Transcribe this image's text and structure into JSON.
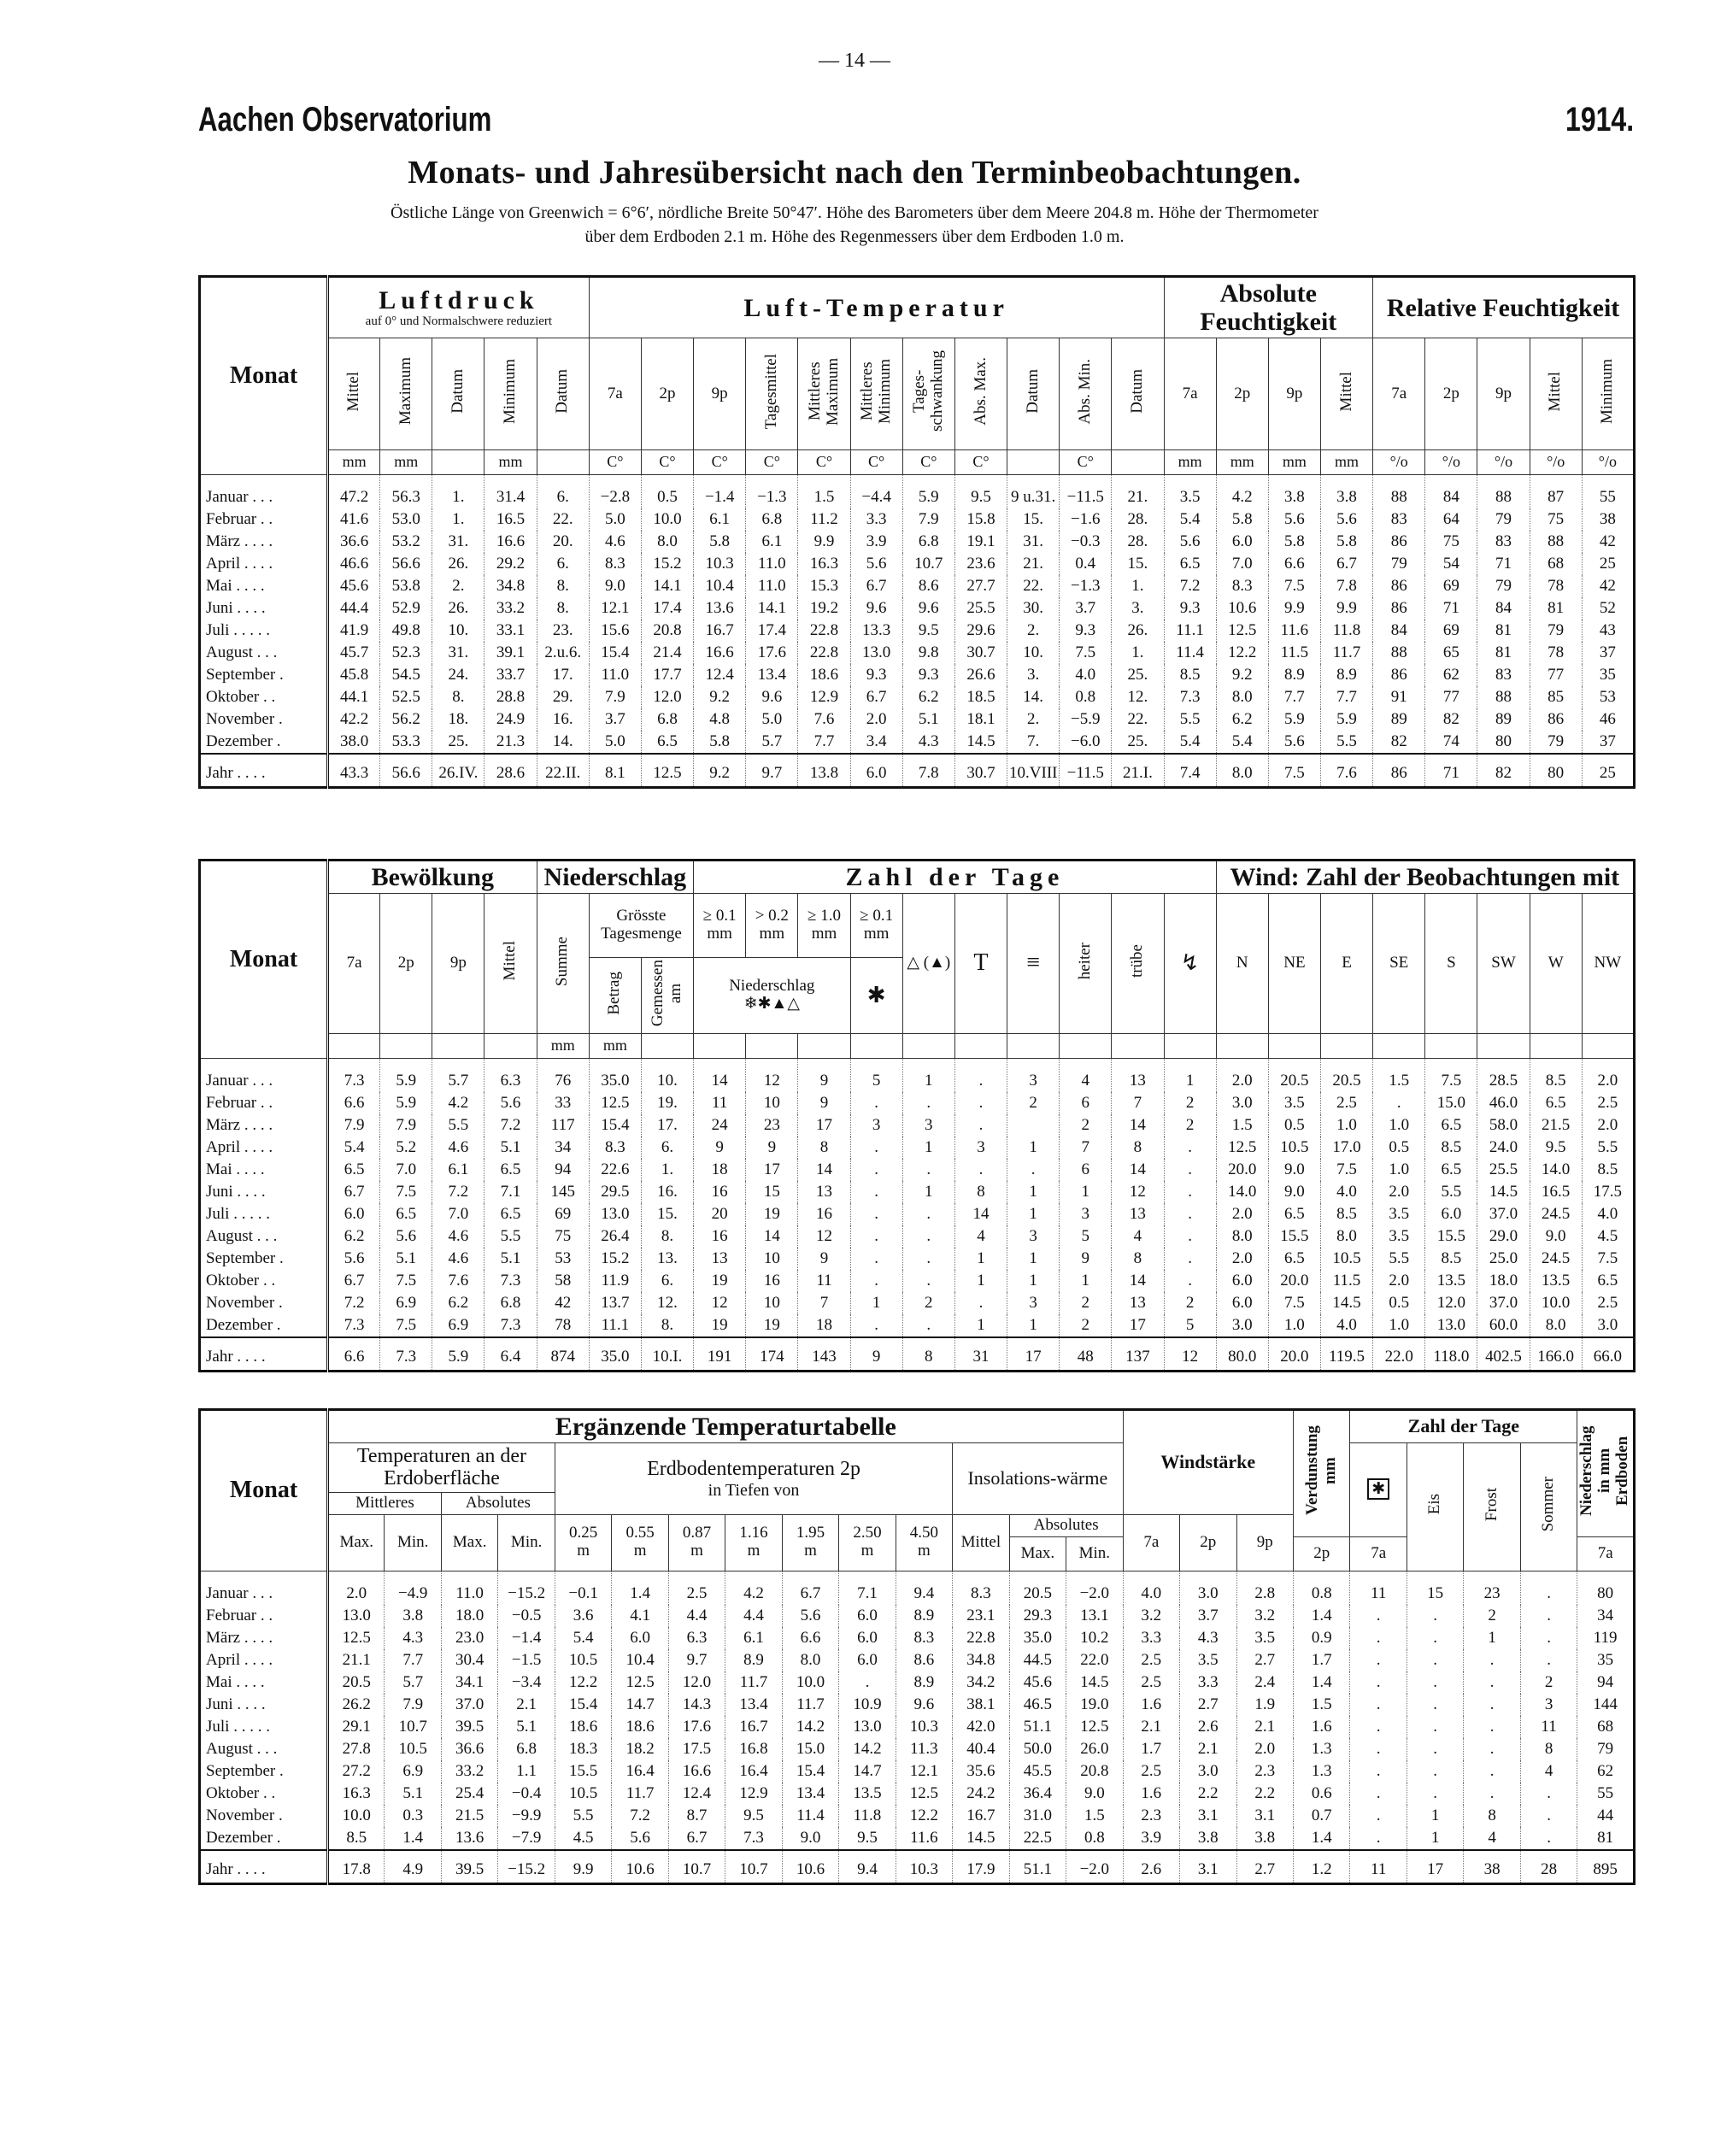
{
  "page_number": "— 14 —",
  "header": {
    "left": "Aachen Observatorium",
    "right": "1914.",
    "title": "Monats- und Jahresübersicht nach den Terminbeobachtungen.",
    "note1": "Östliche Länge von Greenwich = 6°6′, nördliche Breite 50°47′. Höhe des Barometers über dem Meere 204.8 m. Höhe der Thermometer",
    "note2": "über dem Erdboden 2.1 m. Höhe des Regenmessers über dem Erdboden 1.0 m."
  },
  "months": [
    "Januar . . .",
    "Februar . .",
    "März . . . .",
    "April . . . .",
    "Mai . . . .",
    "Juni . . . .",
    "Juli . . . . .",
    "August . . .",
    "September .",
    "Oktober . .",
    "November .",
    "Dezember .",
    "Jahr . . . ."
  ],
  "table1": {
    "monat": "Monat",
    "luftdruck": "Luftdruck",
    "luftdruck_note": "auf 0° und Normalschwere reduziert",
    "temperatur": "Luft-Temperatur",
    "abs_feucht": "Absolute Feuchtigkeit",
    "rel_feucht": "Relative Feuchtigkeit",
    "columns": [
      "Mittel",
      "Maximum",
      "Datum",
      "Minimum",
      "Datum",
      "7a",
      "2p",
      "9p",
      "Tagesmittel",
      "Mittleres Maximum",
      "Mittleres Minimum",
      "Tages-schwankung",
      "Abs. Max.",
      "Datum",
      "Abs. Min.",
      "Datum",
      "7a",
      "2p",
      "9p",
      "Mittel",
      "7a",
      "2p",
      "9p",
      "Mittel",
      "Minimum"
    ],
    "units": [
      "mm",
      "mm",
      null,
      "mm",
      null,
      "C°",
      "C°",
      "C°",
      "C°",
      "C°",
      "C°",
      "C°",
      "C°",
      null,
      "C°",
      null,
      "mm",
      "mm",
      "mm",
      "mm",
      "°/o",
      "°/o",
      "°/o",
      "°/o",
      "°/o"
    ],
    "rows": [
      [
        "47.2",
        "56.3",
        "1.",
        "31.4",
        "6.",
        "−2.8",
        "0.5",
        "−1.4",
        "−1.3",
        "1.5",
        "−4.4",
        "5.9",
        "9.5",
        "9 u.31.",
        "−11.5",
        "21.",
        "3.5",
        "4.2",
        "3.8",
        "3.8",
        "88",
        "84",
        "88",
        "87",
        "55"
      ],
      [
        "41.6",
        "53.0",
        "1.",
        "16.5",
        "22.",
        "5.0",
        "10.0",
        "6.1",
        "6.8",
        "11.2",
        "3.3",
        "7.9",
        "15.8",
        "15.",
        "−1.6",
        "28.",
        "5.4",
        "5.8",
        "5.6",
        "5.6",
        "83",
        "64",
        "79",
        "75",
        "38"
      ],
      [
        "36.6",
        "53.2",
        "31.",
        "16.6",
        "20.",
        "4.6",
        "8.0",
        "5.8",
        "6.1",
        "9.9",
        "3.9",
        "6.8",
        "19.1",
        "31.",
        "−0.3",
        "28.",
        "5.6",
        "6.0",
        "5.8",
        "5.8",
        "86",
        "75",
        "83",
        "88",
        "42"
      ],
      [
        "46.6",
        "56.6",
        "26.",
        "29.2",
        "6.",
        "8.3",
        "15.2",
        "10.3",
        "11.0",
        "16.3",
        "5.6",
        "10.7",
        "23.6",
        "21.",
        "0.4",
        "15.",
        "6.5",
        "7.0",
        "6.6",
        "6.7",
        "79",
        "54",
        "71",
        "68",
        "25"
      ],
      [
        "45.6",
        "53.8",
        "2.",
        "34.8",
        "8.",
        "9.0",
        "14.1",
        "10.4",
        "11.0",
        "15.3",
        "6.7",
        "8.6",
        "27.7",
        "22.",
        "−1.3",
        "1.",
        "7.2",
        "8.3",
        "7.5",
        "7.8",
        "86",
        "69",
        "79",
        "78",
        "42"
      ],
      [
        "44.4",
        "52.9",
        "26.",
        "33.2",
        "8.",
        "12.1",
        "17.4",
        "13.6",
        "14.1",
        "19.2",
        "9.6",
        "9.6",
        "25.5",
        "30.",
        "3.7",
        "3.",
        "9.3",
        "10.6",
        "9.9",
        "9.9",
        "86",
        "71",
        "84",
        "81",
        "52"
      ],
      [
        "41.9",
        "49.8",
        "10.",
        "33.1",
        "23.",
        "15.6",
        "20.8",
        "16.7",
        "17.4",
        "22.8",
        "13.3",
        "9.5",
        "29.6",
        "2.",
        "9.3",
        "26.",
        "11.1",
        "12.5",
        "11.6",
        "11.8",
        "84",
        "69",
        "81",
        "79",
        "43"
      ],
      [
        "45.7",
        "52.3",
        "31.",
        "39.1",
        "2.u.6.",
        "15.4",
        "21.4",
        "16.6",
        "17.6",
        "22.8",
        "13.0",
        "9.8",
        "30.7",
        "10.",
        "7.5",
        "1.",
        "11.4",
        "12.2",
        "11.5",
        "11.7",
        "88",
        "65",
        "81",
        "78",
        "37"
      ],
      [
        "45.8",
        "54.5",
        "24.",
        "33.7",
        "17.",
        "11.0",
        "17.7",
        "12.4",
        "13.4",
        "18.6",
        "9.3",
        "9.3",
        "26.6",
        "3.",
        "4.0",
        "25.",
        "8.5",
        "9.2",
        "8.9",
        "8.9",
        "86",
        "62",
        "83",
        "77",
        "35"
      ],
      [
        "44.1",
        "52.5",
        "8.",
        "28.8",
        "29.",
        "7.9",
        "12.0",
        "9.2",
        "9.6",
        "12.9",
        "6.7",
        "6.2",
        "18.5",
        "14.",
        "0.8",
        "12.",
        "7.3",
        "8.0",
        "7.7",
        "7.7",
        "91",
        "77",
        "88",
        "85",
        "53"
      ],
      [
        "42.2",
        "56.2",
        "18.",
        "24.9",
        "16.",
        "3.7",
        "6.8",
        "4.8",
        "5.0",
        "7.6",
        "2.0",
        "5.1",
        "18.1",
        "2.",
        "−5.9",
        "22.",
        "5.5",
        "6.2",
        "5.9",
        "5.9",
        "89",
        "82",
        "89",
        "86",
        "46"
      ],
      [
        "38.0",
        "53.3",
        "25.",
        "21.3",
        "14.",
        "5.0",
        "6.5",
        "5.8",
        "5.7",
        "7.7",
        "3.4",
        "4.3",
        "14.5",
        "7.",
        "−6.0",
        "25.",
        "5.4",
        "5.4",
        "5.6",
        "5.5",
        "82",
        "74",
        "80",
        "79",
        "37"
      ],
      [
        "43.3",
        "56.6",
        "26.IV.",
        "28.6",
        "22.II.",
        "8.1",
        "12.5",
        "9.2",
        "9.7",
        "13.8",
        "6.0",
        "7.8",
        "30.7",
        "10.VIII.",
        "−11.5",
        "21.I.",
        "7.4",
        "8.0",
        "7.5",
        "7.6",
        "86",
        "71",
        "82",
        "80",
        "25"
      ]
    ]
  },
  "table2": {
    "monat": "Monat",
    "bewoelkung": "Bewölkung",
    "niederschlag": "Niederschlag",
    "zahl": "Zahl der Tage",
    "wind": "Wind: Zahl der Beobachtungen mit",
    "bew_cols": [
      "7a",
      "2p",
      "9p",
      "Mittel"
    ],
    "summe": "Summe",
    "groesste": "Grösste Tagesmenge",
    "betrag": "Betrag",
    "gemessen": "Gemessen am",
    "thresholds": [
      "≥ 0.1",
      "> 0.2",
      "≥ 1.0",
      "≥ 0.1"
    ],
    "mm": "mm",
    "nied_label": "Niederschlag",
    "nied_symbols": "❄✱▲△",
    "star": "✱",
    "hail": "△ (▲)",
    "thunder": "T",
    "fog": "≡",
    "heiter": "heiter",
    "truebe": "trübe",
    "storm": "↯",
    "wind_dirs": [
      "N",
      "NE",
      "E",
      "SE",
      "S",
      "SW",
      "W",
      "NW"
    ],
    "units": [
      null,
      null,
      null,
      null,
      "mm",
      "mm",
      null,
      null,
      null,
      null,
      null,
      null,
      null,
      null,
      null,
      null,
      null,
      null,
      null,
      null,
      null,
      null,
      null,
      null,
      null
    ],
    "rows": [
      [
        "7.3",
        "5.9",
        "5.7",
        "6.3",
        "76",
        "35.0",
        "10.",
        "14",
        "12",
        "9",
        "5",
        "1",
        ".",
        "3",
        "4",
        "13",
        "1",
        "2.0",
        "20.5",
        "20.5",
        "1.5",
        "7.5",
        "28.5",
        "8.5",
        "2.0"
      ],
      [
        "6.6",
        "5.9",
        "4.2",
        "5.6",
        "33",
        "12.5",
        "19.",
        "11",
        "10",
        "9",
        ".",
        ".",
        ".",
        "2",
        "6",
        "7",
        "2",
        "3.0",
        "3.5",
        "2.5",
        ".",
        "15.0",
        "46.0",
        "6.5",
        "2.5"
      ],
      [
        "7.9",
        "7.9",
        "5.5",
        "7.2",
        "117",
        "15.4",
        "17.",
        "24",
        "23",
        "17",
        "3",
        "3",
        ".",
        null,
        "2",
        "14",
        "2",
        "1.5",
        "0.5",
        "1.0",
        "1.0",
        "6.5",
        "58.0",
        "21.5",
        "2.0"
      ],
      [
        "5.4",
        "5.2",
        "4.6",
        "5.1",
        "34",
        "8.3",
        "6.",
        "9",
        "9",
        "8",
        ".",
        "1",
        "3",
        "1",
        "7",
        "8",
        ".",
        "12.5",
        "10.5",
        "17.0",
        "0.5",
        "8.5",
        "24.0",
        "9.5",
        "5.5"
      ],
      [
        "6.5",
        "7.0",
        "6.1",
        "6.5",
        "94",
        "22.6",
        "1.",
        "18",
        "17",
        "14",
        ".",
        ".",
        ".",
        ".",
        "6",
        "14",
        ".",
        "20.0",
        "9.0",
        "7.5",
        "1.0",
        "6.5",
        "25.5",
        "14.0",
        "8.5"
      ],
      [
        "6.7",
        "7.5",
        "7.2",
        "7.1",
        "145",
        "29.5",
        "16.",
        "16",
        "15",
        "13",
        ".",
        "1",
        "8",
        "1",
        "1",
        "12",
        ".",
        "14.0",
        "9.0",
        "4.0",
        "2.0",
        "5.5",
        "14.5",
        "16.5",
        "17.5"
      ],
      [
        "6.0",
        "6.5",
        "7.0",
        "6.5",
        "69",
        "13.0",
        "15.",
        "20",
        "19",
        "16",
        ".",
        ".",
        "14",
        "1",
        "3",
        "13",
        ".",
        "2.0",
        "6.5",
        "8.5",
        "3.5",
        "6.0",
        "37.0",
        "24.5",
        "4.0"
      ],
      [
        "6.2",
        "5.6",
        "4.6",
        "5.5",
        "75",
        "26.4",
        "8.",
        "16",
        "14",
        "12",
        ".",
        ".",
        "4",
        "3",
        "5",
        "4",
        ".",
        "8.0",
        "15.5",
        "8.0",
        "3.5",
        "15.5",
        "29.0",
        "9.0",
        "4.5"
      ],
      [
        "5.6",
        "5.1",
        "4.6",
        "5.1",
        "53",
        "15.2",
        "13.",
        "13",
        "10",
        "9",
        ".",
        ".",
        "1",
        "1",
        "9",
        "8",
        ".",
        "2.0",
        "6.5",
        "10.5",
        "5.5",
        "8.5",
        "25.0",
        "24.5",
        "7.5"
      ],
      [
        "6.7",
        "7.5",
        "7.6",
        "7.3",
        "58",
        "11.9",
        "6.",
        "19",
        "16",
        "11",
        ".",
        ".",
        "1",
        "1",
        "1",
        "14",
        ".",
        "6.0",
        "20.0",
        "11.5",
        "2.0",
        "13.5",
        "18.0",
        "13.5",
        "6.5"
      ],
      [
        "7.2",
        "6.9",
        "6.2",
        "6.8",
        "42",
        "13.7",
        "12.",
        "12",
        "10",
        "7",
        "1",
        "2",
        ".",
        "3",
        "2",
        "13",
        "2",
        "6.0",
        "7.5",
        "14.5",
        "0.5",
        "12.0",
        "37.0",
        "10.0",
        "2.5"
      ],
      [
        "7.3",
        "7.5",
        "6.9",
        "7.3",
        "78",
        "11.1",
        "8.",
        "19",
        "19",
        "18",
        ".",
        ".",
        "1",
        "1",
        "2",
        "17",
        "5",
        "3.0",
        "1.0",
        "4.0",
        "1.0",
        "13.0",
        "60.0",
        "8.0",
        "3.0"
      ],
      [
        "6.6",
        "7.3",
        "5.9",
        "6.4",
        "874",
        "35.0",
        "10.I.",
        "191",
        "174",
        "143",
        "9",
        "8",
        "31",
        "17",
        "48",
        "137",
        "12",
        "80.0",
        "20.0",
        "119.5",
        "22.0",
        "118.0",
        "402.5",
        "166.0",
        "66.0"
      ]
    ]
  },
  "table3": {
    "monat": "Monat",
    "title": "Ergänzende Temperaturtabelle",
    "surface": "Temperaturen an der Erdoberfläche",
    "mittleres": "Mittleres",
    "absolutes": "Absolutes",
    "max": "Max.",
    "min": "Min.",
    "erdboden": "Erdbodentemperaturen 2p",
    "tiefen": "in Tiefen von",
    "depths": [
      "0.25",
      "0.55",
      "0.87",
      "1.16",
      "1.95",
      "2.50",
      "4.50"
    ],
    "depth_unit": "m",
    "insolation": "Insolations-wärme",
    "mittel": "Mittel",
    "windstaerke": "Windstärke",
    "verdunstung": "Verdunstung mm",
    "zahl": "Zahl der Tage",
    "star": "✱",
    "eis": "Eis",
    "frost": "Frost",
    "sommer": "Sommer",
    "niederschlag": "Niederschlag in mm Erdboden",
    "t7a": "7a",
    "t2p": "2p",
    "t9p": "9p",
    "rows": [
      [
        "2.0",
        "−4.9",
        "11.0",
        "−15.2",
        "−0.1",
        "1.4",
        "2.5",
        "4.2",
        "6.7",
        "7.1",
        "9.4",
        "8.3",
        "20.5",
        "−2.0",
        "4.0",
        "3.0",
        "2.8",
        "0.8",
        "11",
        "15",
        "23",
        ".",
        "80"
      ],
      [
        "13.0",
        "3.8",
        "18.0",
        "−0.5",
        "3.6",
        "4.1",
        "4.4",
        "4.4",
        "5.6",
        "6.0",
        "8.9",
        "23.1",
        "29.3",
        "13.1",
        "3.2",
        "3.7",
        "3.2",
        "1.4",
        ".",
        ".",
        "2",
        ".",
        "34"
      ],
      [
        "12.5",
        "4.3",
        "23.0",
        "−1.4",
        "5.4",
        "6.0",
        "6.3",
        "6.1",
        "6.6",
        "6.0",
        "8.3",
        "22.8",
        "35.0",
        "10.2",
        "3.3",
        "4.3",
        "3.5",
        "0.9",
        ".",
        ".",
        "1",
        ".",
        "119"
      ],
      [
        "21.1",
        "7.7",
        "30.4",
        "−1.5",
        "10.5",
        "10.4",
        "9.7",
        "8.9",
        "8.0",
        "6.0",
        "8.6",
        "34.8",
        "44.5",
        "22.0",
        "2.5",
        "3.5",
        "2.7",
        "1.7",
        ".",
        ".",
        ".",
        ".",
        "35"
      ],
      [
        "20.5",
        "5.7",
        "34.1",
        "−3.4",
        "12.2",
        "12.5",
        "12.0",
        "11.7",
        "10.0",
        ".",
        "8.9",
        "34.2",
        "45.6",
        "14.5",
        "2.5",
        "3.3",
        "2.4",
        "1.4",
        ".",
        ".",
        ".",
        "2",
        "94"
      ],
      [
        "26.2",
        "7.9",
        "37.0",
        "2.1",
        "15.4",
        "14.7",
        "14.3",
        "13.4",
        "11.7",
        "10.9",
        "9.6",
        "38.1",
        "46.5",
        "19.0",
        "1.6",
        "2.7",
        "1.9",
        "1.5",
        ".",
        ".",
        ".",
        "3",
        "144"
      ],
      [
        "29.1",
        "10.7",
        "39.5",
        "5.1",
        "18.6",
        "18.6",
        "17.6",
        "16.7",
        "14.2",
        "13.0",
        "10.3",
        "42.0",
        "51.1",
        "12.5",
        "2.1",
        "2.6",
        "2.1",
        "1.6",
        ".",
        ".",
        ".",
        "11",
        "68"
      ],
      [
        "27.8",
        "10.5",
        "36.6",
        "6.8",
        "18.3",
        "18.2",
        "17.5",
        "16.8",
        "15.0",
        "14.2",
        "11.3",
        "40.4",
        "50.0",
        "26.0",
        "1.7",
        "2.1",
        "2.0",
        "1.3",
        ".",
        ".",
        ".",
        "8",
        "79"
      ],
      [
        "27.2",
        "6.9",
        "33.2",
        "1.1",
        "15.5",
        "16.4",
        "16.6",
        "16.4",
        "15.4",
        "14.7",
        "12.1",
        "35.6",
        "45.5",
        "20.8",
        "2.5",
        "3.0",
        "2.3",
        "1.3",
        ".",
        ".",
        ".",
        "4",
        "62"
      ],
      [
        "16.3",
        "5.1",
        "25.4",
        "−0.4",
        "10.5",
        "11.7",
        "12.4",
        "12.9",
        "13.4",
        "13.5",
        "12.5",
        "24.2",
        "36.4",
        "9.0",
        "1.6",
        "2.2",
        "2.2",
        "0.6",
        ".",
        ".",
        ".",
        ".",
        "55"
      ],
      [
        "10.0",
        "0.3",
        "21.5",
        "−9.9",
        "5.5",
        "7.2",
        "8.7",
        "9.5",
        "11.4",
        "11.8",
        "12.2",
        "16.7",
        "31.0",
        "1.5",
        "2.3",
        "3.1",
        "3.1",
        "0.7",
        ".",
        "1",
        "8",
        ".",
        "44"
      ],
      [
        "8.5",
        "1.4",
        "13.6",
        "−7.9",
        "4.5",
        "5.6",
        "6.7",
        "7.3",
        "9.0",
        "9.5",
        "11.6",
        "14.5",
        "22.5",
        "0.8",
        "3.9",
        "3.8",
        "3.8",
        "1.4",
        ".",
        "1",
        "4",
        ".",
        "81"
      ],
      [
        "17.8",
        "4.9",
        "39.5",
        "−15.2",
        "9.9",
        "10.6",
        "10.7",
        "10.7",
        "10.6",
        "9.4",
        "10.3",
        "17.9",
        "51.1",
        "−2.0",
        "2.6",
        "3.1",
        "2.7",
        "1.2",
        "11",
        "17",
        "38",
        "28",
        "895"
      ]
    ]
  }
}
